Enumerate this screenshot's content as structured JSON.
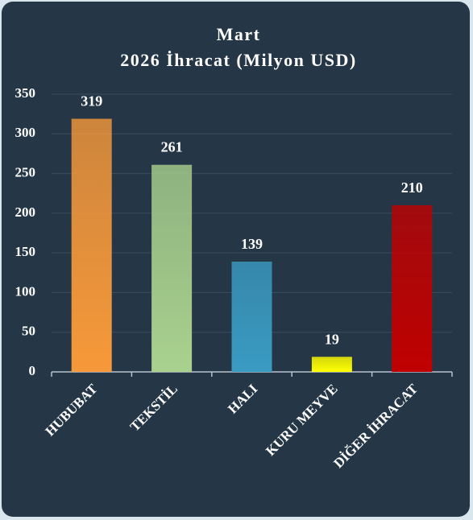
{
  "chart_data": {
    "type": "bar",
    "title": [
      "Mart",
      "2026 İhracat (Milyon USD)"
    ],
    "categories": [
      "HUBUBAT",
      "TEKSTİL",
      "HALI",
      "KURU MEYVE",
      "DİĞER İHRACAT"
    ],
    "values": [
      319,
      261,
      139,
      19,
      210
    ],
    "colors": [
      "#f7993a",
      "#a9d18e",
      "#3a9bc3",
      "#ffff00",
      "#c00000"
    ],
    "ylim": [
      0,
      350
    ],
    "yticks": [
      0,
      50,
      100,
      150,
      200,
      250,
      300,
      350
    ],
    "grid": true
  }
}
